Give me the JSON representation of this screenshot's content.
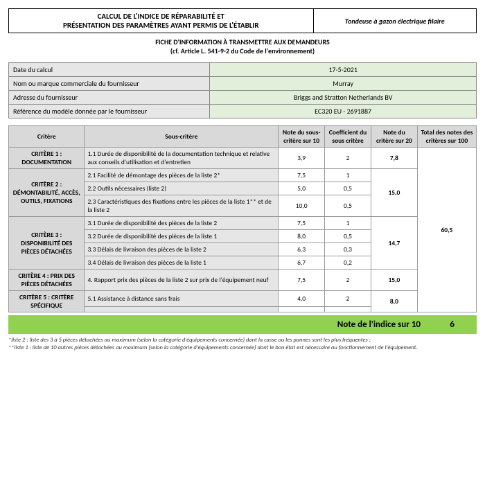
{
  "header": {
    "title_line1": "CALCUL DE L'INDICE DE RÉPARABILITÉ ET",
    "title_line2": "PRÉSENTATION DES PARAMÈTRES AYANT PERMIS DE L'ÉTABLIR",
    "product": "Tondeuse à gazon électrique filaire",
    "sub_line1": "FICHE D'INFORMATION À TRANSMETTRE AUX DEMANDEURS",
    "sub_line2": "(cf. Article L. 541-9-2 du Code de l'environnement)"
  },
  "info": {
    "rows": [
      {
        "label": "Date du calcul",
        "value": "17-5-2021"
      },
      {
        "label": "Nom ou marque commerciale du fournisseur",
        "value": "Murray"
      },
      {
        "label": "Adresse du fournisseur",
        "value": "Briggs and Stratton Netherlands BV"
      },
      {
        "label": "Référence du modèle donnée par le fournisseur",
        "value": "EC320 EU - 2691887"
      }
    ]
  },
  "columns": {
    "c1": "Critère",
    "c2": "Sous-critère",
    "c3": "Note du sous-critère sur 10",
    "c4": "Coefficient du sous critère",
    "c5": "Note du critère sur 20",
    "c6": "Total des notes des critères sur 100"
  },
  "criteria": [
    {
      "name": "CRITÈRE 1 : DOCUMENTATION",
      "score20": "7,8",
      "subs": [
        {
          "label": "1.1 Durée de disponibilité de la documentation technique et relative aux conseils d'utilisation et d'entretien",
          "score10": "3,9",
          "coef": "2"
        }
      ]
    },
    {
      "name": "CRITÈRE 2 : DÉMONTABILITÉ, ACCÈS, OUTILS, FIXATIONS",
      "score20": "15,0",
      "subs": [
        {
          "label": "2.1 Facilité de démontage des pièces de la liste 2*",
          "score10": "7,5",
          "coef": "1"
        },
        {
          "label": "2.2 Outils nécessaires (liste 2)",
          "score10": "5,0",
          "coef": "0,5"
        },
        {
          "label": "2.3 Caractéristiques des fixations entre les pièces de la liste 1** et de la liste 2",
          "score10": "10,0",
          "coef": "0,5"
        }
      ]
    },
    {
      "name": "CRITÈRE 3 : DISPONIBILITÉ DES PIÈCES DÉTACHÉES",
      "score20": "14,7",
      "subs": [
        {
          "label": "3.1 Durée de disponibilité des pièces de la liste 2",
          "score10": "7,5",
          "coef": "1"
        },
        {
          "label": "3.2 Durée de disponibilité des pièces de la liste 1",
          "score10": "8,0",
          "coef": "0,5"
        },
        {
          "label": "3.3 Délais de livraison des pièces de la liste 2",
          "score10": "6,3",
          "coef": "0,3"
        },
        {
          "label": "3.4 Délais de livraison des pièces de la liste 1",
          "score10": "6,7",
          "coef": "0,2"
        }
      ]
    },
    {
      "name": "CRITÈRE 4 : PRIX DES PIÈCES DÉTACHÉES",
      "score20": "15,0",
      "subs": [
        {
          "label": "4. Rapport prix des pièces de la liste 2 sur prix de l'équipement neuf",
          "score10": "7,5",
          "coef": "2"
        }
      ]
    },
    {
      "name": "CRITÈRE 5 : CRITÈRE SPÉCIFIQUE",
      "score20": "8,0",
      "subs": [
        {
          "label": "5.1 Assistance à distance sans frais",
          "score10": "4,0",
          "coef": "2"
        },
        {
          "label": "",
          "score10": "",
          "coef": ""
        }
      ]
    }
  ],
  "total100": "60,5",
  "score": {
    "label": "Note de l'indice sur 10",
    "value": "6"
  },
  "footnotes": {
    "f1": "*liste 2 : liste des 3 à 5 pièces détachées au maximum (selon la catégorie d'équipements concernée) dont la casse ou les pannes sont les plus fréquentes ;",
    "f2": "**liste 1 : liste de 10 autres pièces détachées au maximum (selon la catégorie d'équipements concernée) dont le bon état est nécessaire au fonctionnement de l'équipement."
  },
  "style": {
    "header_bg": "#d9d9d9",
    "info_value_bg": "#e2efda",
    "score_bg": "#92d050"
  }
}
